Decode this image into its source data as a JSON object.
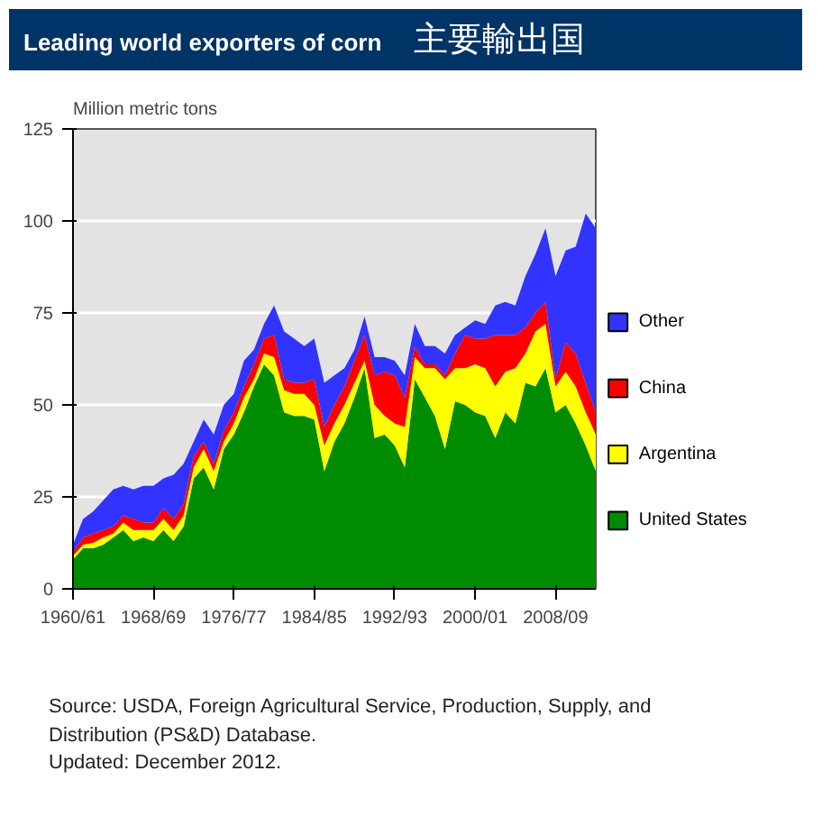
{
  "chart_data": {
    "type": "area",
    "stacked": true,
    "title": "Leading world exporters of corn",
    "subtitle": "主要輸出国",
    "ylabel": "Million metric tons",
    "categories": [
      "1960/61",
      null,
      null,
      null,
      null,
      null,
      null,
      null,
      "1968/69",
      null,
      null,
      null,
      null,
      null,
      null,
      null,
      "1976/77",
      null,
      null,
      null,
      null,
      null,
      null,
      null,
      "1984/85",
      null,
      null,
      null,
      null,
      null,
      null,
      null,
      "1992/93",
      null,
      null,
      null,
      null,
      null,
      null,
      null,
      "2000/01",
      null,
      null,
      null,
      null,
      null,
      null,
      null,
      "2008/09",
      null,
      null,
      null,
      null
    ],
    "series": [
      {
        "name": "United States",
        "color": "#008c00",
        "values": [
          8,
          11,
          11,
          12,
          14,
          16,
          13,
          14,
          13,
          16,
          13,
          17,
          30,
          33,
          27,
          38,
          42,
          48,
          55,
          61,
          58,
          48,
          47,
          47,
          46,
          32,
          40,
          45,
          52,
          60,
          41,
          42,
          39,
          33,
          57,
          52,
          47,
          38,
          51,
          50,
          48,
          47,
          41,
          48,
          45,
          56,
          55,
          60,
          48,
          50,
          45,
          39,
          32
        ]
      },
      {
        "name": "Argentina",
        "color": "#ffff00",
        "values": [
          1,
          1,
          1.5,
          2,
          1,
          2,
          3,
          2,
          3,
          3,
          3,
          3,
          3,
          5,
          5,
          2,
          3,
          4,
          2,
          3,
          5,
          6,
          6,
          6,
          4,
          7,
          5,
          5,
          4,
          2,
          9,
          5,
          6,
          11,
          6,
          8,
          13,
          19,
          9,
          10,
          13,
          13,
          14,
          11,
          15,
          8,
          15,
          12,
          7,
          9,
          10,
          9,
          10
        ]
      },
      {
        "name": "China",
        "color": "#ff0000",
        "values": [
          1,
          2,
          2.5,
          2,
          2,
          2,
          3,
          2,
          2,
          3,
          3,
          3,
          3,
          2,
          2,
          3,
          3,
          3,
          4,
          4,
          6,
          3,
          3,
          3,
          7,
          5,
          5,
          5,
          6,
          7,
          8,
          12,
          13,
          8,
          3,
          1,
          1,
          1,
          4,
          9,
          7,
          8,
          14,
          10,
          9,
          7,
          5,
          6,
          2,
          8,
          9,
          8,
          6
        ]
      },
      {
        "name": "Other",
        "color": "#3333ff",
        "values": [
          2,
          5,
          6,
          8,
          10,
          8,
          8,
          10,
          10,
          8,
          12,
          11,
          4,
          6,
          8,
          7,
          5,
          7,
          4,
          4,
          8,
          13,
          12,
          10,
          11,
          12,
          8,
          5,
          3,
          5,
          5,
          4,
          4,
          6,
          6,
          5,
          5,
          6,
          5,
          2,
          5,
          4,
          8,
          9,
          8,
          14,
          16,
          20,
          28,
          25,
          29,
          46,
          50
        ]
      }
    ],
    "ylim": [
      0,
      125
    ],
    "yticks": [
      0,
      25,
      50,
      75,
      100,
      125
    ],
    "grid": "y",
    "legend": "right",
    "annotations": [
      "Source: USDA, Foreign Agricultural Service, Production, Supply, and Distribution (PS&D) Database.",
      "Updated: December 2012."
    ]
  }
}
